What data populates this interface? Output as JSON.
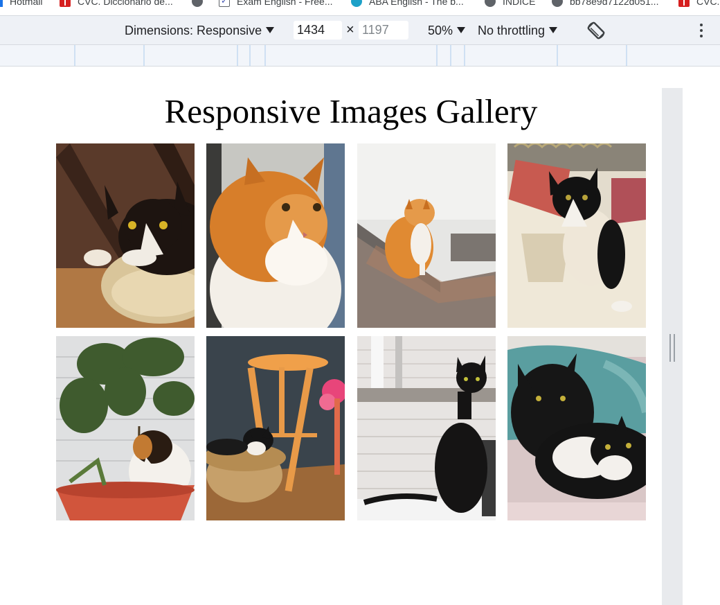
{
  "bookmarks": [
    {
      "label": "Hotmail",
      "icon": "hotmail-icon"
    },
    {
      "label": "CVC. Diccionario de...",
      "icon": "cvc-icon"
    },
    {
      "label": "",
      "icon": "globe-icon"
    },
    {
      "label": "Exam English - Free...",
      "icon": "exam-english-icon"
    },
    {
      "label": "ABA English - The b...",
      "icon": "aba-english-icon"
    },
    {
      "label": "ÍNDICE",
      "icon": "globe-icon"
    },
    {
      "label": "bb78e9d7122d051...",
      "icon": "globe-icon"
    },
    {
      "label": "CVC.",
      "icon": "cvc-icon"
    }
  ],
  "devtools": {
    "dimensions_label": "Dimensions: Responsive",
    "width_value": "1434",
    "times_symbol": "×",
    "height_placeholder": "1197",
    "zoom": "50%",
    "throttling": "No throttling",
    "rotate_icon": "rotate-icon",
    "more_icon": "more-vert-icon"
  },
  "page": {
    "title": "Responsive Images Gallery",
    "images": [
      {
        "name": "gallery-image-1",
        "subject": "black and white cat on cushion"
      },
      {
        "name": "gallery-image-2",
        "subject": "orange and white long-haired cat"
      },
      {
        "name": "gallery-image-3",
        "subject": "orange cat sitting on ledge"
      },
      {
        "name": "gallery-image-4",
        "subject": "black and white cat on bed"
      },
      {
        "name": "gallery-image-5",
        "subject": "calico cat by potted plant"
      },
      {
        "name": "gallery-image-6",
        "subject": "black and white cat in basket under stool"
      },
      {
        "name": "gallery-image-7",
        "subject": "black cat on balcony"
      },
      {
        "name": "gallery-image-8",
        "subject": "two black and white cats on blanket"
      }
    ]
  },
  "colors": {
    "toolbar_bg": "#eef1f6",
    "gutter_bg": "#e8eaed",
    "accent": "#1a73e8"
  }
}
